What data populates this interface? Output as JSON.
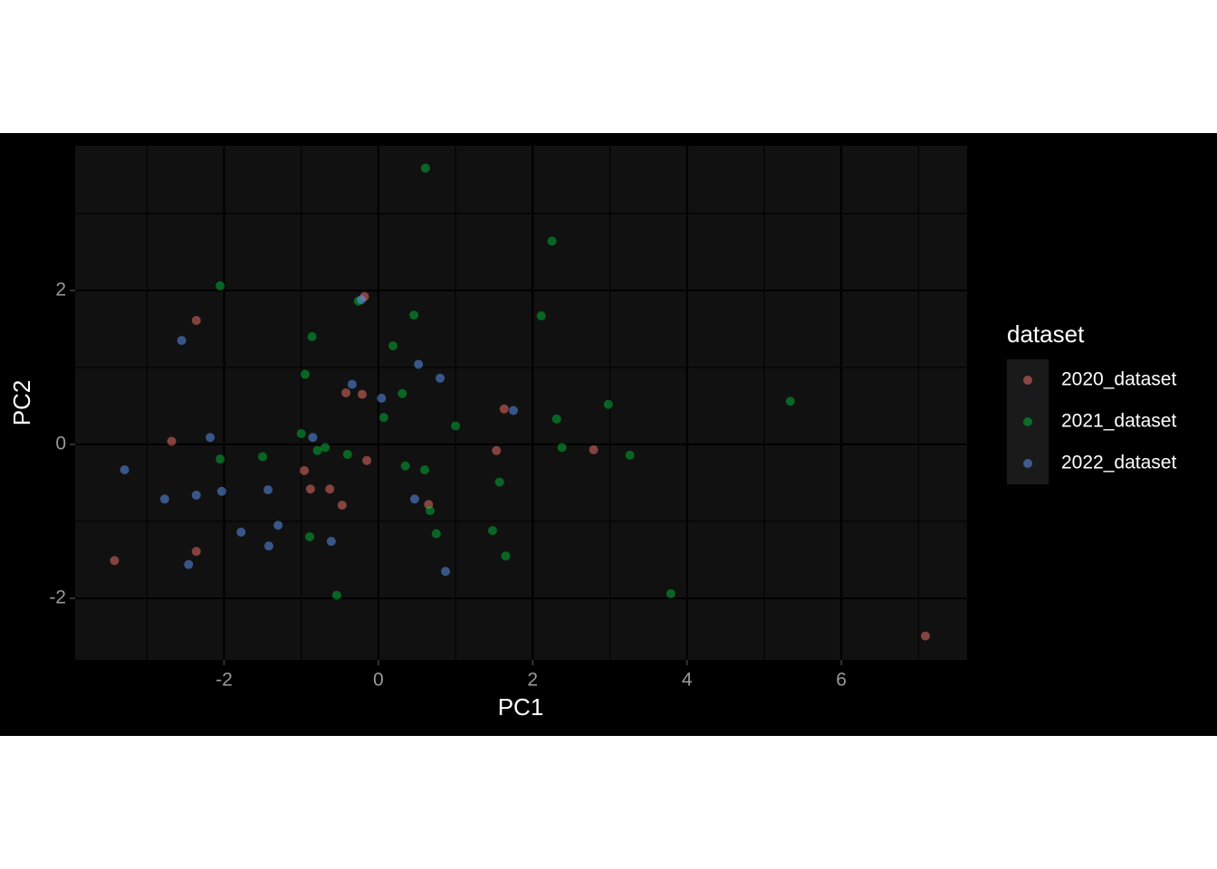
{
  "chart_data": {
    "type": "scatter",
    "x_label": "PC1",
    "y_label": "PC2",
    "legend_title": "dataset",
    "legend": "right",
    "grid": true,
    "xlim": [
      -3.93,
      7.63
    ],
    "ylim": [
      -2.8,
      3.88
    ],
    "xticks": [
      -2,
      0,
      2,
      4,
      6
    ],
    "yticks": [
      -2,
      0,
      2
    ],
    "opacity": 0.5,
    "series": [
      {
        "name": "2020_dataset",
        "color": "#F8766D",
        "x": [
          -0.18,
          -2.36,
          -2.68,
          -0.42,
          -0.21,
          1.63,
          1.53,
          2.79,
          -0.96,
          -0.88,
          -0.63,
          -0.15,
          -0.47,
          0.65,
          -2.36,
          -3.42,
          7.09
        ],
        "values": [
          1.92,
          1.61,
          0.04,
          0.67,
          0.65,
          0.46,
          -0.08,
          -0.07,
          -0.34,
          -0.58,
          -0.58,
          -0.21,
          -0.79,
          -0.78,
          -1.39,
          -1.51,
          -2.49
        ]
      },
      {
        "name": "2021_dataset",
        "color": "#00BA38",
        "x": [
          0.61,
          2.25,
          -2.05,
          -0.26,
          0.46,
          2.11,
          -0.86,
          0.19,
          -0.95,
          0.31,
          2.98,
          5.34,
          0.07,
          2.31,
          1.0,
          -1.0,
          -0.69,
          -0.79,
          2.38,
          -0.4,
          3.26,
          -2.05,
          -1.5,
          0.35,
          0.6,
          1.57,
          0.67,
          1.48,
          0.75,
          -0.89,
          1.65,
          -0.54,
          3.79
        ],
        "values": [
          3.59,
          2.64,
          2.06,
          1.86,
          1.68,
          1.67,
          1.4,
          1.28,
          0.91,
          0.66,
          0.52,
          0.56,
          0.35,
          0.33,
          0.24,
          0.14,
          -0.04,
          -0.08,
          -0.04,
          -0.13,
          -0.14,
          -0.19,
          -0.16,
          -0.28,
          -0.33,
          -0.49,
          -0.86,
          -1.12,
          -1.16,
          -1.2,
          -1.45,
          -1.96,
          -1.94
        ]
      },
      {
        "name": "2022_dataset",
        "color": "#619CFF",
        "x": [
          -0.22,
          -2.55,
          0.52,
          0.8,
          -0.34,
          0.04,
          1.75,
          -2.18,
          -0.85,
          -3.29,
          -2.77,
          -2.36,
          -2.03,
          -1.43,
          0.47,
          -1.3,
          -1.78,
          -1.42,
          -0.61,
          -2.46,
          0.87
        ],
        "values": [
          1.88,
          1.35,
          1.04,
          0.86,
          0.78,
          0.6,
          0.44,
          0.09,
          0.09,
          -0.33,
          -0.71,
          -0.66,
          -0.61,
          -0.59,
          -0.71,
          -1.05,
          -1.14,
          -1.32,
          -1.26,
          -1.56,
          -1.65
        ]
      }
    ]
  }
}
